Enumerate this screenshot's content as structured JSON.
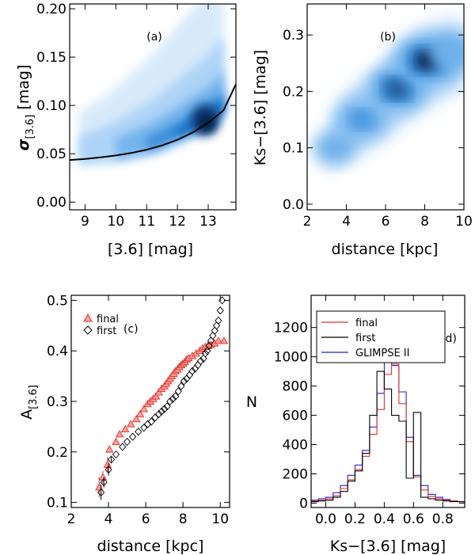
{
  "chart_data": [
    {
      "id": "a",
      "type": "heatmap",
      "panel_label": "(a)",
      "xlabel": "[3.6] [mag]",
      "ylabel_main": "σ",
      "ylabel_sub": "[3.6]",
      "ylabel_unit": " [mag]",
      "xlim": [
        8.5,
        13.9
      ],
      "ylim": [
        -0.008,
        0.205
      ],
      "xticks": [
        9,
        10,
        11,
        12,
        13
      ],
      "xtick_labels": [
        "9",
        "10",
        "11",
        "12",
        "13"
      ],
      "yticks": [
        0.0,
        0.05,
        0.1,
        0.15,
        0.2
      ],
      "ytick_labels": [
        "0.00",
        "0.05",
        "0.10",
        "0.15",
        "0.20"
      ],
      "colormap": [
        "#d4e8fa",
        "#a9d1f6",
        "#6eb0ea",
        "#2f86d6",
        "#0b5fb5",
        "#083a77",
        "#051c40"
      ],
      "density_ridge": {
        "x": [
          8.8,
          9.5,
          10.0,
          10.5,
          11.0,
          11.5,
          12.0,
          12.5,
          13.0,
          13.5
        ],
        "y": [
          0.043,
          0.046,
          0.048,
          0.052,
          0.056,
          0.062,
          0.07,
          0.078,
          0.085,
          0.1
        ]
      },
      "fit_curve": {
        "x": [
          8.5,
          9.0,
          9.5,
          10.0,
          10.5,
          11.0,
          11.5,
          12.0,
          12.5,
          13.0,
          13.5,
          13.9
        ],
        "y": [
          0.0435,
          0.0447,
          0.0462,
          0.0482,
          0.0508,
          0.0542,
          0.0586,
          0.0644,
          0.072,
          0.082,
          0.095,
          0.122
        ]
      }
    },
    {
      "id": "b",
      "type": "heatmap",
      "panel_label": "(b)",
      "xlabel": "distance [kpc]",
      "ylabel": "Ks−[3.6] [mag]",
      "xlim": [
        2,
        10
      ],
      "ylim": [
        -0.01,
        0.355
      ],
      "xticks": [
        2,
        4,
        6,
        8,
        10
      ],
      "xtick_labels": [
        "2",
        "4",
        "6",
        "8",
        "10"
      ],
      "yticks": [
        0.0,
        0.1,
        0.2,
        0.3
      ],
      "ytick_labels": [
        "0.0",
        "0.1",
        "0.2",
        "0.3"
      ],
      "colormap": [
        "#d4e8fa",
        "#a9d1f6",
        "#6eb0ea",
        "#2f86d6",
        "#0b5fb5",
        "#083a77",
        "#051c40"
      ],
      "density_peaks": [
        {
          "x": 4.8,
          "y": 0.15,
          "weight": 0.55
        },
        {
          "x": 6.6,
          "y": 0.205,
          "weight": 0.85
        },
        {
          "x": 8.1,
          "y": 0.255,
          "weight": 1.0
        },
        {
          "x": 9.4,
          "y": 0.27,
          "weight": 0.5
        },
        {
          "x": 3.4,
          "y": 0.1,
          "weight": 0.3
        }
      ]
    },
    {
      "id": "c",
      "type": "scatter",
      "panel_label": "(c)",
      "xlabel": "distance [kpc]",
      "ylabel_main": "A",
      "ylabel_sub": "[3.6]",
      "xlim": [
        2,
        10.5
      ],
      "ylim": [
        0.09,
        0.51
      ],
      "xticks": [
        2,
        4,
        6,
        8,
        10
      ],
      "xtick_labels": [
        "2",
        "4",
        "6",
        "8",
        "10"
      ],
      "yticks": [
        0.1,
        0.2,
        0.3,
        0.4,
        0.5
      ],
      "ytick_labels": [
        "0.1",
        "0.2",
        "0.3",
        "0.4",
        "0.5"
      ],
      "legend_position": "top-left",
      "series": [
        {
          "name": "final",
          "marker": "triangle",
          "color": "#e8302a",
          "x": [
            3.5,
            3.7,
            3.95,
            4.05,
            4.4,
            4.6,
            4.9,
            5.2,
            5.5,
            5.7,
            5.9,
            6.1,
            6.25,
            6.4,
            6.55,
            6.7,
            6.85,
            7.0,
            7.1,
            7.2,
            7.3,
            7.4,
            7.5,
            7.6,
            7.7,
            7.8,
            7.9,
            8.0,
            8.1,
            8.2,
            8.3,
            8.5,
            8.7,
            8.9,
            9.05,
            9.2,
            9.35,
            9.5,
            9.7,
            9.9,
            10.2
          ],
          "y": [
            0.13,
            0.15,
            0.175,
            0.205,
            0.22,
            0.235,
            0.245,
            0.255,
            0.265,
            0.275,
            0.285,
            0.295,
            0.3,
            0.305,
            0.31,
            0.318,
            0.325,
            0.33,
            0.335,
            0.34,
            0.345,
            0.35,
            0.355,
            0.36,
            0.363,
            0.368,
            0.372,
            0.375,
            0.378,
            0.383,
            0.386,
            0.39,
            0.395,
            0.4,
            0.405,
            0.408,
            0.41,
            0.412,
            0.415,
            0.42,
            0.42
          ],
          "yerr": [
            0.02,
            0.012,
            0.015,
            0.005,
            0.003,
            0.003,
            0.003,
            0.003,
            0.003,
            0.003,
            0.003,
            0.003,
            0.003,
            0.003,
            0.003,
            0.003,
            0.003,
            0.003,
            0.003,
            0.003,
            0.003,
            0.003,
            0.003,
            0.003,
            0.003,
            0.003,
            0.003,
            0.003,
            0.003,
            0.003,
            0.003,
            0.003,
            0.003,
            0.003,
            0.003,
            0.003,
            0.003,
            0.003,
            0.003,
            0.003,
            0.003
          ]
        },
        {
          "name": "first",
          "marker": "diamond",
          "color": "#000000",
          "x": [
            3.6,
            3.75,
            4.0,
            4.15,
            4.4,
            4.75,
            5.0,
            5.3,
            5.6,
            5.9,
            6.1,
            6.3,
            6.5,
            6.7,
            6.85,
            7.0,
            7.15,
            7.3,
            7.45,
            7.6,
            7.75,
            7.9,
            8.05,
            8.2,
            8.35,
            8.5,
            8.65,
            8.8,
            8.95,
            9.1,
            9.2,
            9.3,
            9.4,
            9.5,
            9.6,
            9.7,
            9.8,
            9.9,
            10.0,
            10.1
          ],
          "y": [
            0.12,
            0.14,
            0.165,
            0.185,
            0.195,
            0.21,
            0.22,
            0.23,
            0.24,
            0.248,
            0.255,
            0.26,
            0.268,
            0.275,
            0.28,
            0.285,
            0.29,
            0.3,
            0.305,
            0.31,
            0.32,
            0.33,
            0.34,
            0.345,
            0.352,
            0.36,
            0.365,
            0.372,
            0.38,
            0.385,
            0.395,
            0.4,
            0.41,
            0.42,
            0.43,
            0.44,
            0.45,
            0.46,
            0.48,
            0.5
          ],
          "yerr": [
            0.015,
            0.01,
            0.012,
            0.005,
            0.003,
            0.003,
            0.003,
            0.003,
            0.003,
            0.003,
            0.003,
            0.003,
            0.003,
            0.003,
            0.003,
            0.003,
            0.003,
            0.003,
            0.003,
            0.003,
            0.003,
            0.003,
            0.003,
            0.003,
            0.003,
            0.003,
            0.003,
            0.003,
            0.003,
            0.003,
            0.003,
            0.003,
            0.003,
            0.003,
            0.003,
            0.003,
            0.003,
            0.003,
            0.003,
            0.003
          ]
        }
      ]
    },
    {
      "id": "d",
      "type": "line",
      "subtype": "step-histogram",
      "panel_label": "(d)",
      "xlabel": "Ks−[3.6] [mag]",
      "ylabel": "N",
      "xlim": [
        -0.1,
        0.95
      ],
      "ylim": [
        -30,
        1420
      ],
      "xticks": [
        0.0,
        0.2,
        0.4,
        0.6,
        0.8
      ],
      "xtick_labels": [
        "0.0",
        "0.2",
        "0.4",
        "0.6",
        "0.8"
      ],
      "yticks": [
        0,
        200,
        400,
        600,
        800,
        1000,
        1200
      ],
      "ytick_labels": [
        "0",
        "200",
        "400",
        "600",
        "800",
        "1000",
        "1200"
      ],
      "legend_position": "top-right",
      "bin_edges": [
        -0.1,
        -0.05,
        0.0,
        0.05,
        0.1,
        0.15,
        0.2,
        0.25,
        0.3,
        0.35,
        0.4,
        0.45,
        0.5,
        0.55,
        0.6,
        0.65,
        0.7,
        0.75,
        0.8,
        0.85,
        0.9,
        0.95
      ],
      "series": [
        {
          "name": "final",
          "color": "#e8302a",
          "counts": [
            15,
            20,
            30,
            50,
            100,
            160,
            230,
            320,
            470,
            640,
            880,
            950,
            680,
            420,
            180,
            90,
            45,
            30,
            20,
            15,
            10
          ]
        },
        {
          "name": "first",
          "color": "#000000",
          "counts": [
            10,
            15,
            20,
            40,
            80,
            150,
            220,
            340,
            600,
            900,
            780,
            600,
            560,
            170,
            620,
            40,
            30,
            20,
            15,
            10,
            10
          ]
        },
        {
          "name": "GLIMPSE II",
          "color": "#2222cc",
          "counts": [
            20,
            30,
            40,
            70,
            120,
            190,
            260,
            360,
            520,
            750,
            990,
            940,
            760,
            450,
            190,
            120,
            60,
            40,
            25,
            15,
            10
          ]
        }
      ]
    }
  ]
}
